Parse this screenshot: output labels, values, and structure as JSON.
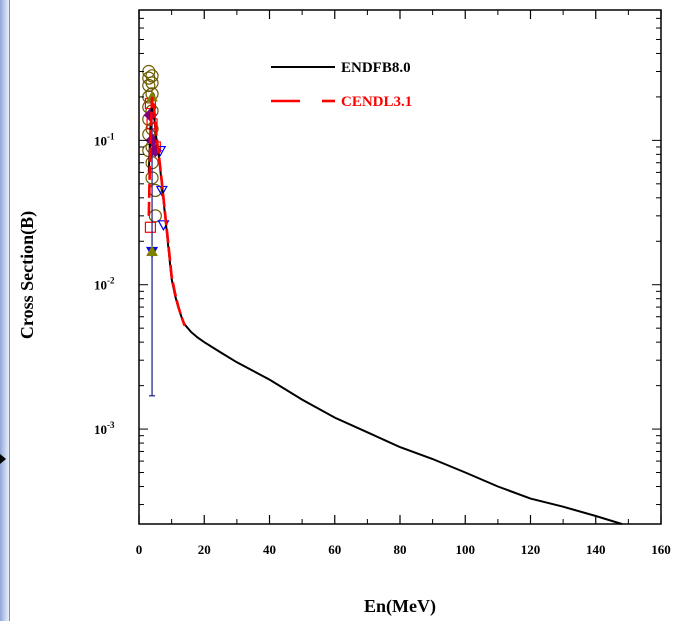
{
  "chart_data": {
    "type": "line",
    "title": "",
    "xlabel": "En(MeV)",
    "ylabel": "Cross Section(B)",
    "xlim": [
      0,
      160
    ],
    "ylim": [
      0.00022,
      0.8
    ],
    "yscale": "log",
    "x_ticks": [
      0,
      20,
      40,
      60,
      80,
      100,
      120,
      140,
      160
    ],
    "y_ticks": [
      {
        "value": 0.1,
        "base": "10",
        "exp": "-1"
      },
      {
        "value": 0.01,
        "base": "10",
        "exp": "-2"
      },
      {
        "value": 0.001,
        "base": "10",
        "exp": "-3"
      }
    ],
    "grid": false,
    "legend_position": "top-center",
    "series": [
      {
        "name": "ENDFB8.0",
        "color": "#000000",
        "style": "solid",
        "x": [
          3,
          3.5,
          4,
          4.5,
          5,
          5.5,
          6,
          7,
          8,
          9,
          10,
          11,
          12,
          13,
          14,
          16,
          18,
          20,
          25,
          30,
          40,
          50,
          60,
          70,
          80,
          90,
          100,
          110,
          120,
          130,
          140,
          148
        ],
        "y": [
          0.06,
          0.12,
          0.18,
          0.16,
          0.12,
          0.095,
          0.08,
          0.05,
          0.03,
          0.018,
          0.011,
          0.0085,
          0.007,
          0.006,
          0.0053,
          0.0047,
          0.0043,
          0.004,
          0.0034,
          0.0029,
          0.0022,
          0.0016,
          0.0012,
          0.00095,
          0.00075,
          0.00062,
          0.0005,
          0.0004,
          0.00033,
          0.00029,
          0.00025,
          0.00022
        ]
      },
      {
        "name": "CENDL3.1",
        "color": "#ff0000",
        "style": "dashed",
        "x": [
          3,
          3.5,
          4,
          4.5,
          5,
          5.5,
          6,
          7,
          8,
          9,
          10,
          11,
          12,
          13,
          14
        ],
        "y": [
          0.03,
          0.1,
          0.2,
          0.18,
          0.13,
          0.1,
          0.082,
          0.052,
          0.031,
          0.019,
          0.0115,
          0.0088,
          0.0071,
          0.006,
          0.0052
        ]
      }
    ],
    "experimental": [
      {
        "marker": "circle",
        "color": "#6b5a00",
        "x": [
          3,
          3,
          3,
          3,
          3,
          3,
          3,
          3,
          4,
          4,
          4,
          4,
          4,
          4,
          4,
          4,
          5,
          5
        ],
        "y": [
          0.3,
          0.27,
          0.24,
          0.2,
          0.17,
          0.14,
          0.11,
          0.085,
          0.28,
          0.25,
          0.21,
          0.16,
          0.12,
          0.09,
          0.07,
          0.055,
          0.045,
          0.03
        ]
      },
      {
        "marker": "square",
        "color": "#ff0000",
        "x": [
          3.5,
          4,
          5,
          3.5
        ],
        "y": [
          0.18,
          0.13,
          0.09,
          0.025
        ]
      },
      {
        "marker": "triangle-down",
        "color": "#0000ff",
        "x": [
          6.5,
          7,
          7.5,
          4
        ],
        "y": [
          0.085,
          0.045,
          0.026,
          0.017
        ],
        "error_low": [
          null,
          null,
          null,
          0.0017
        ],
        "error_high": [
          null,
          null,
          null,
          0.19
        ]
      },
      {
        "marker": "diamond",
        "color": "#800080",
        "x": [
          3.5,
          4,
          5
        ],
        "y": [
          0.15,
          0.1,
          0.085
        ]
      },
      {
        "marker": "triangle-up",
        "color": "#808000",
        "x": [
          4,
          4
        ],
        "y": [
          0.2,
          0.017
        ]
      }
    ]
  }
}
